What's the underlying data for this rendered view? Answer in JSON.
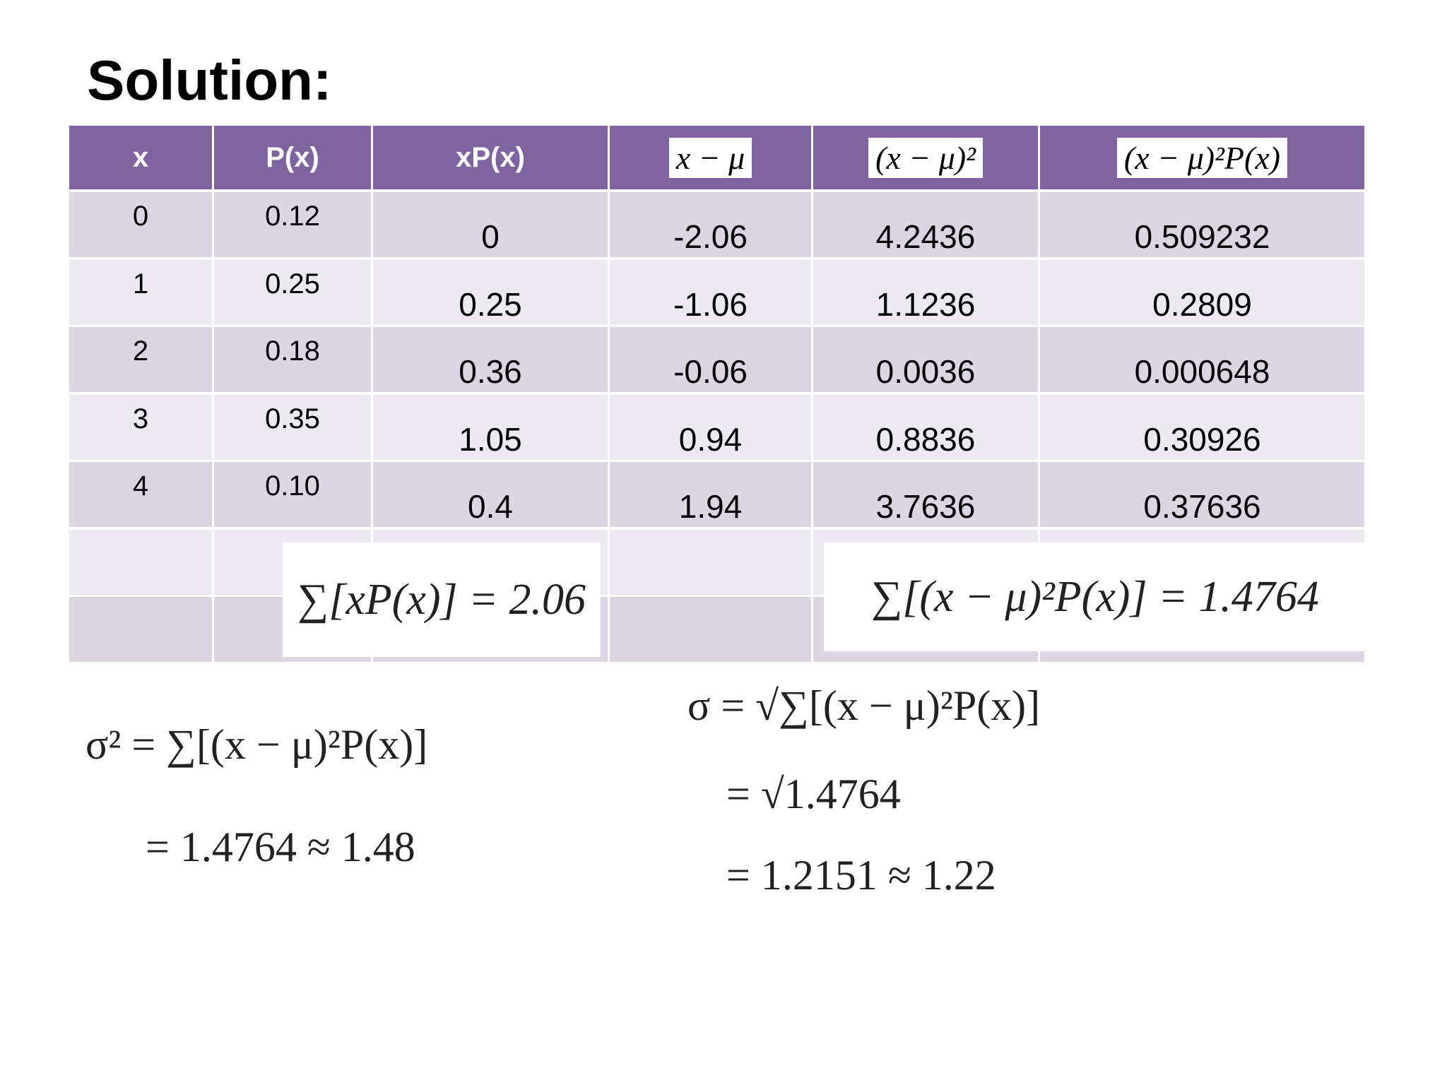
{
  "title": "Solution:",
  "table": {
    "headers": [
      "x",
      "P(x)",
      "xP(x)",
      "x − μ",
      "(x − μ)²",
      "(x − μ)²P(x)"
    ],
    "rows": [
      [
        "0",
        "0.12",
        "0",
        "-2.06",
        "4.2436",
        "0.509232"
      ],
      [
        "1",
        "0.25",
        "0.25",
        "-1.06",
        "1.1236",
        "0.2809"
      ],
      [
        "2",
        "0.18",
        "0.36",
        "-0.06",
        "0.0036",
        "0.000648"
      ],
      [
        "3",
        "0.35",
        "1.05",
        "0.94",
        "0.8836",
        "0.30926"
      ],
      [
        "4",
        "0.10",
        "0.4",
        "1.94",
        "3.7636",
        "0.37636"
      ]
    ],
    "sums": [
      "∑[xP(x)] = 2.06",
      "∑[(x − μ)²P(x)] = 1.4764"
    ]
  },
  "variance": [
    "σ² = ∑[(x − μ)²P(x)]",
    "= 1.4764 ≈ 1.48"
  ],
  "std_dev": [
    "σ = √∑[(x − μ)²P(x)]",
    "= √1.4764",
    "= 1.2151 ≈ 1.22"
  ]
}
